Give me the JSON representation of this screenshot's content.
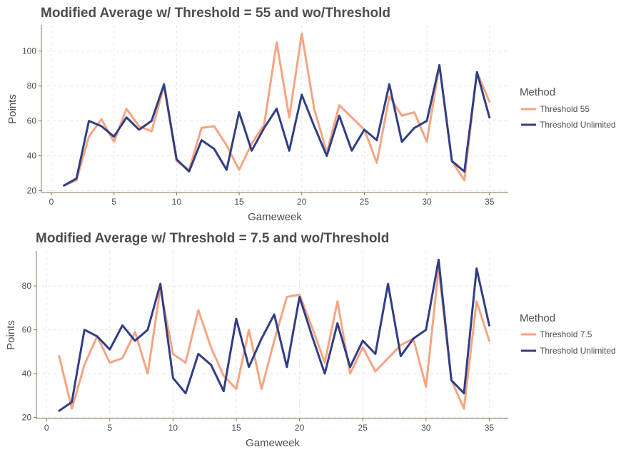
{
  "colors": {
    "threshold": "#f4a582",
    "unlimited": "#313e84",
    "axis": "#8b7355",
    "grid": "#e6e6e6"
  },
  "chart_data": [
    {
      "type": "line",
      "title": "Modified Average w/ Threshold = 55 and wo/Threshold",
      "xlabel": "Gameweek",
      "ylabel": "Points",
      "xlim": [
        -0.8,
        36.5
      ],
      "ylim": [
        19,
        115
      ],
      "xticks": [
        0,
        5,
        10,
        15,
        20,
        25,
        30,
        35
      ],
      "yticks": [
        20,
        40,
        60,
        80,
        100
      ],
      "legend_title": "Method",
      "legend_position": "right",
      "grid": true,
      "x": [
        1,
        2,
        3,
        4,
        5,
        6,
        7,
        8,
        9,
        10,
        11,
        12,
        13,
        14,
        15,
        16,
        17,
        18,
        19,
        20,
        21,
        22,
        23,
        24,
        25,
        26,
        27,
        28,
        29,
        30,
        31,
        32,
        33,
        34,
        35
      ],
      "series": [
        {
          "name": "Threshold 55",
          "color_key": "threshold",
          "values": [
            23,
            26,
            51,
            61,
            48,
            67,
            57,
            54,
            80,
            37,
            32,
            56,
            57,
            46,
            32,
            47,
            58,
            105,
            62,
            110,
            67,
            42,
            69,
            62,
            55,
            36,
            74,
            63,
            65,
            48,
            92,
            37,
            26,
            88,
            71
          ]
        },
        {
          "name": "Threshold Unlimited",
          "color_key": "unlimited",
          "values": [
            23,
            27,
            60,
            57,
            51,
            62,
            55,
            60,
            81,
            38,
            31,
            49,
            44,
            32,
            65,
            43,
            56,
            67,
            43,
            75,
            57,
            40,
            63,
            43,
            55,
            49,
            81,
            48,
            56,
            60,
            92,
            37,
            31,
            88,
            62
          ]
        }
      ]
    },
    {
      "type": "line",
      "title": "Modified Average w/ Threshold = 7.5 and wo/Threshold",
      "xlabel": "Gameweek",
      "ylabel": "Points",
      "xlim": [
        -0.8,
        36.5
      ],
      "ylim": [
        19.5,
        96
      ],
      "xticks": [
        0,
        5,
        10,
        15,
        20,
        25,
        30,
        35
      ],
      "yticks": [
        20,
        40,
        60,
        80
      ],
      "legend_title": "Method",
      "legend_position": "right",
      "grid": true,
      "x": [
        1,
        2,
        3,
        4,
        5,
        6,
        7,
        8,
        9,
        10,
        11,
        12,
        13,
        14,
        15,
        16,
        17,
        18,
        19,
        20,
        21,
        22,
        23,
        24,
        25,
        26,
        27,
        28,
        29,
        30,
        31,
        32,
        33,
        34,
        35
      ],
      "series": [
        {
          "name": "Threshold 7.5",
          "color_key": "threshold",
          "values": [
            48,
            24,
            44,
            57,
            45,
            47,
            59,
            40,
            79,
            49,
            45,
            69,
            52,
            39,
            33,
            60,
            33,
            55,
            75,
            76,
            61,
            45,
            73,
            40,
            52,
            41,
            47,
            53,
            56,
            34,
            88,
            37,
            24,
            73,
            55
          ]
        },
        {
          "name": "Threshold Unlimited",
          "color_key": "unlimited",
          "values": [
            23,
            27,
            60,
            57,
            51,
            62,
            55,
            60,
            81,
            38,
            31,
            49,
            44,
            32,
            65,
            43,
            56,
            67,
            43,
            75,
            57,
            40,
            63,
            43,
            55,
            49,
            81,
            48,
            56,
            60,
            92,
            37,
            31,
            88,
            62
          ]
        }
      ]
    }
  ]
}
